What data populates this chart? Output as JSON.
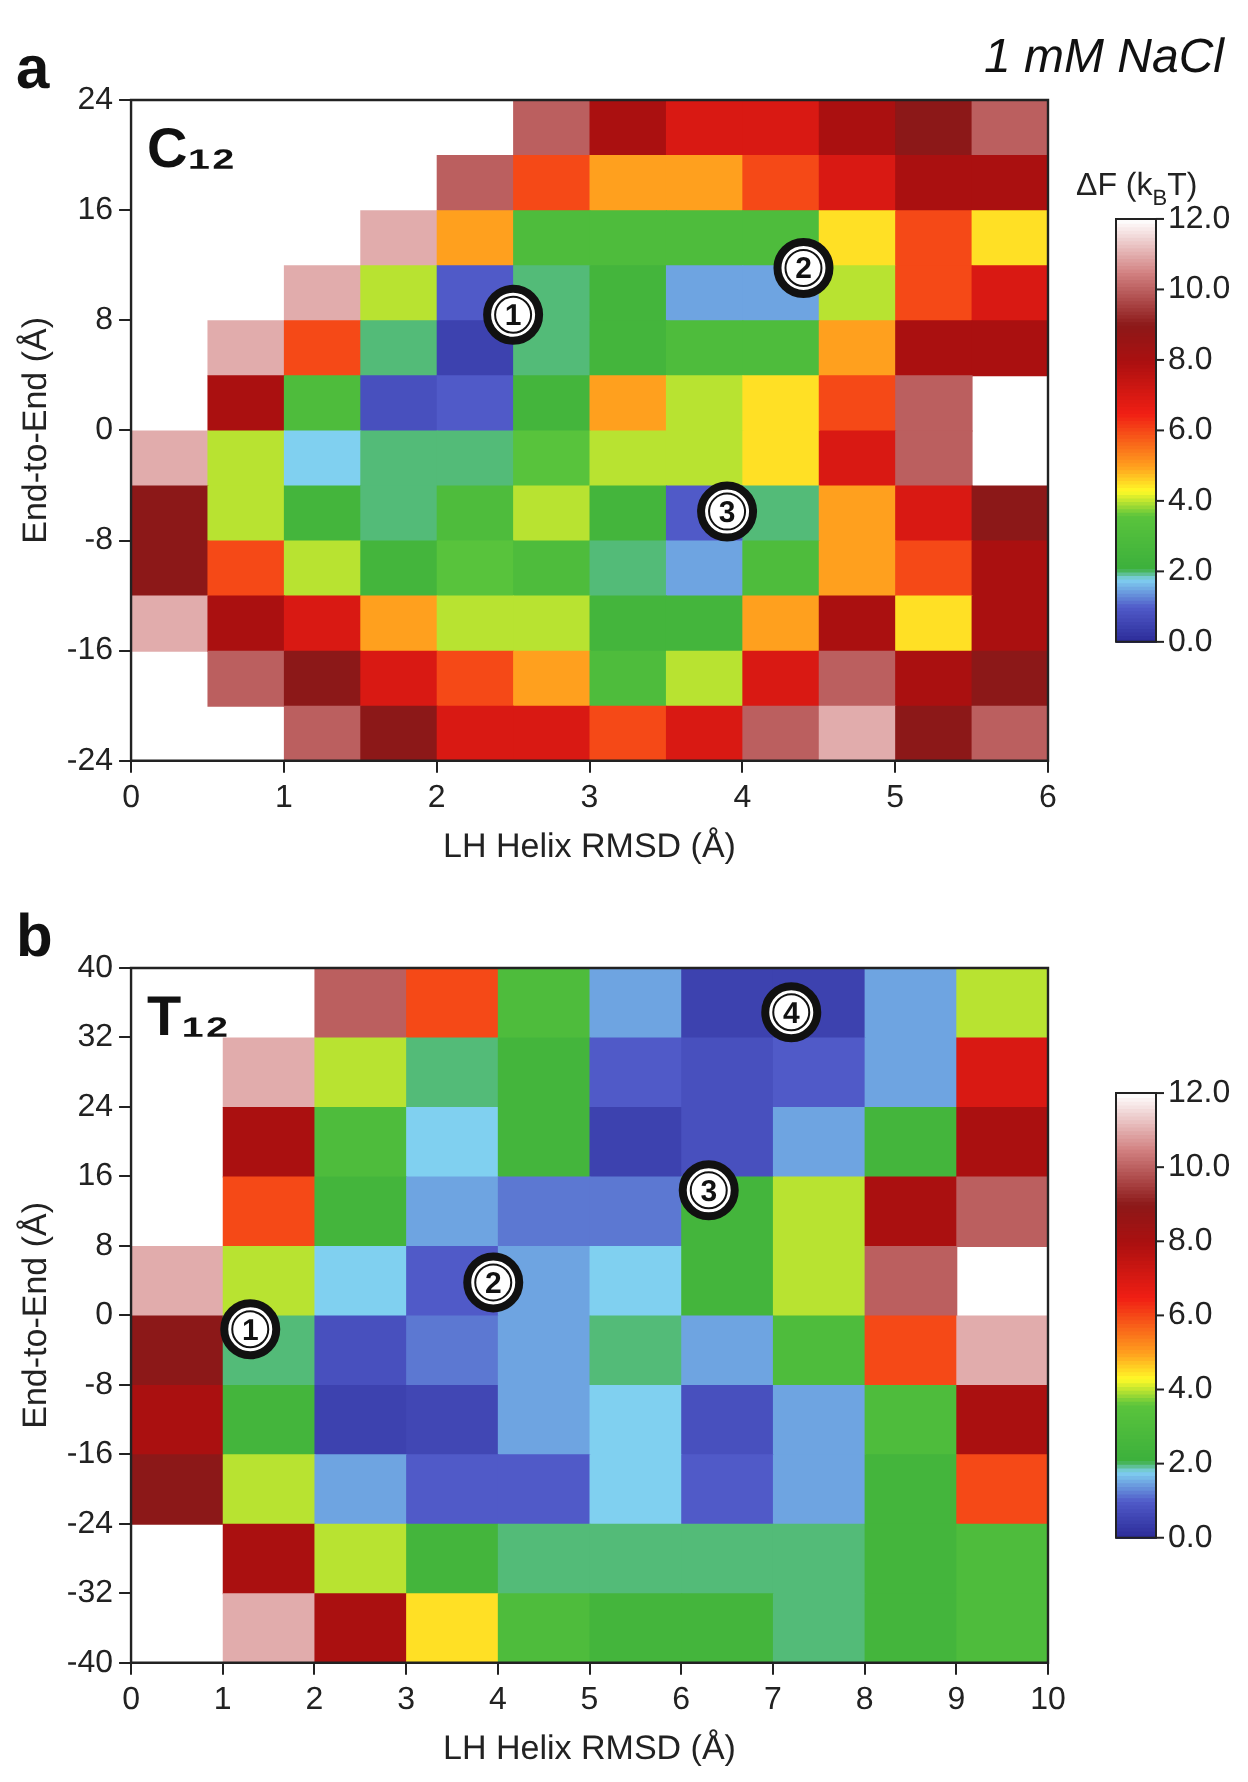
{
  "chart_data": [
    {
      "type": "heatmap",
      "title": "a",
      "subtitle": "1 mM NaCl",
      "xlabel": "LH Helix RMSD (Å)",
      "ylabel": "End-to-End (Å)",
      "clabel": "ΔF (k$_{B}$T)",
      "x": [
        0.25,
        0.75,
        1.25,
        1.75,
        2.25,
        2.75,
        3.25,
        3.75,
        4.25,
        4.75,
        5.25,
        5.75
      ],
      "y": [
        22,
        18,
        14,
        10,
        6,
        2,
        -2,
        -6,
        -10,
        -14,
        -18,
        -22
      ],
      "cells": [
        [
          null,
          null,
          null,
          null,
          null,
          10,
          8,
          7,
          7,
          8,
          9,
          10
        ],
        [
          null,
          null,
          null,
          null,
          10,
          6,
          5,
          5,
          6,
          7,
          8,
          8
        ],
        [
          null,
          null,
          null,
          11,
          5,
          3,
          3,
          3,
          3,
          4.5,
          6,
          4.5
        ],
        [
          null,
          null,
          11,
          4,
          1,
          2,
          2.5,
          1.5,
          1.5,
          4,
          6,
          7
        ],
        [
          null,
          11,
          6,
          2,
          0.5,
          2,
          2.5,
          3,
          3,
          5,
          8,
          8
        ],
        [
          null,
          8,
          3,
          0.8,
          1,
          2.5,
          5,
          4,
          4.5,
          6,
          10,
          null
        ],
        [
          11,
          4,
          1.8,
          2,
          2,
          3.5,
          4,
          4,
          4.5,
          7,
          10,
          null
        ],
        [
          9,
          4,
          2.5,
          2,
          3,
          4,
          2.5,
          1,
          2,
          5,
          7,
          9
        ],
        [
          9,
          6,
          4,
          2.5,
          3.5,
          3,
          2,
          1.5,
          3,
          5,
          6,
          8
        ],
        [
          11,
          8,
          7,
          5,
          4,
          4,
          2.5,
          2.5,
          5,
          8,
          4.5,
          8
        ],
        [
          null,
          10,
          9,
          7,
          6,
          5,
          3,
          4,
          7,
          10,
          8,
          9
        ],
        [
          null,
          null,
          10,
          9,
          7,
          7,
          6,
          7,
          10,
          11,
          9,
          10
        ]
      ],
      "xlim": [
        0,
        6
      ],
      "xticks": [
        0,
        1,
        2,
        3,
        4,
        5,
        6
      ],
      "ylim": [
        -24,
        24
      ],
      "yticks": [
        -24,
        -16,
        -8,
        0,
        8,
        16,
        24
      ],
      "clim": [
        0,
        12
      ],
      "cticks": [
        {
          "value": 0,
          "label": "0.0"
        },
        {
          "value": 2,
          "label": "2.0"
        },
        {
          "value": 4,
          "label": "4.0"
        },
        {
          "value": 6,
          "label": "6.0"
        },
        {
          "value": 8,
          "label": "8.0"
        },
        {
          "value": 10,
          "label": "10.0"
        },
        {
          "value": 12,
          "label": "12.0"
        }
      ],
      "annotations": [
        "C₁₂",
        {
          "text": "1",
          "x": 2.5,
          "y": 8.4
        },
        {
          "text": "2",
          "x": 4.4,
          "y": 11.8
        },
        {
          "text": "3",
          "x": 3.9,
          "y": -5.9
        }
      ]
    },
    {
      "type": "heatmap",
      "title": "b",
      "xlabel": "LH Helix RMSD (Å)",
      "ylabel": "End-to-End (Å)",
      "x": [
        0.5,
        1.5,
        2.5,
        3.5,
        4.5,
        5.5,
        6.5,
        7.5,
        8.5,
        9.5
      ],
      "y": [
        36,
        28,
        20,
        12,
        4,
        -4,
        -12,
        -20,
        -28,
        -36
      ],
      "cells": [
        [
          null,
          null,
          10,
          6,
          3,
          1.5,
          0.5,
          0.5,
          1.5,
          4
        ],
        [
          null,
          11,
          4,
          2,
          2.5,
          1,
          0.8,
          1,
          1.5,
          7
        ],
        [
          null,
          8,
          3,
          1.8,
          2.5,
          0.5,
          0.8,
          1.5,
          2.5,
          8
        ],
        [
          null,
          6,
          2.5,
          1.5,
          1.2,
          1.2,
          2.5,
          4,
          8,
          10
        ],
        [
          11,
          4,
          1.8,
          1,
          1.5,
          1.8,
          2.5,
          4,
          10,
          null
        ],
        [
          9,
          2,
          0.8,
          1.2,
          1.5,
          2,
          1.5,
          3,
          6,
          11
        ],
        [
          8,
          2.5,
          0.5,
          0.6,
          1.5,
          1.8,
          0.8,
          1.5,
          3,
          8
        ],
        [
          9,
          4,
          1.5,
          1,
          1,
          1.8,
          1,
          1.5,
          2.5,
          6
        ],
        [
          null,
          8,
          4,
          2.5,
          2,
          2,
          2,
          2,
          2.5,
          3
        ],
        [
          null,
          11,
          8,
          4.5,
          3,
          2.5,
          2.5,
          2,
          2.5,
          3
        ]
      ],
      "xlim": [
        0,
        10
      ],
      "xticks": [
        0,
        1,
        2,
        3,
        4,
        5,
        6,
        7,
        8,
        9,
        10
      ],
      "ylim": [
        -40,
        40
      ],
      "yticks": [
        -40,
        -32,
        -24,
        -16,
        -8,
        0,
        8,
        16,
        24,
        32,
        40
      ],
      "clim": [
        0,
        12
      ],
      "cticks": [
        {
          "value": 0,
          "label": "0.0"
        },
        {
          "value": 2,
          "label": "2.0"
        },
        {
          "value": 4,
          "label": "4.0"
        },
        {
          "value": 6,
          "label": "6.0"
        },
        {
          "value": 8,
          "label": "8.0"
        },
        {
          "value": 10,
          "label": "10.0"
        },
        {
          "value": 12,
          "label": "12.0"
        }
      ],
      "annotations": [
        "T₁₂",
        {
          "text": "1",
          "x": 1.3,
          "y": -1.6
        },
        {
          "text": "2",
          "x": 3.95,
          "y": 3.8
        },
        {
          "text": "3",
          "x": 6.3,
          "y": 14.4
        },
        {
          "text": "4",
          "x": 7.2,
          "y": 34.9
        }
      ]
    }
  ]
}
